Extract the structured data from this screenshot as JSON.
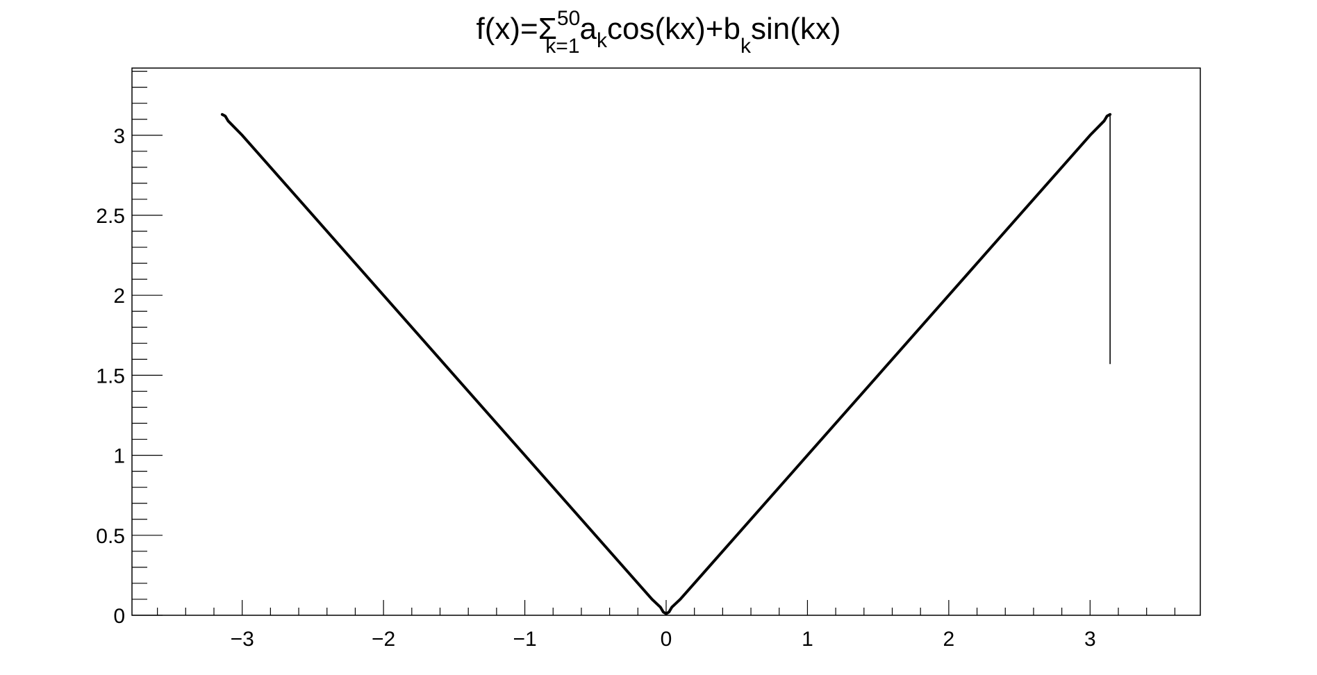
{
  "chart_data": {
    "type": "line",
    "title": {
      "lhs": "f(x)=",
      "sum_symbol": "Σ",
      "sum_upper": "50",
      "sum_lower": "k=1",
      "a": "a",
      "a_sub": "k",
      "cos_term": "cos(kx)+b",
      "b_sub": "k",
      "sin_term": "sin(kx)"
    },
    "xlabel": "",
    "ylabel": "",
    "xlim": [
      -3.78,
      3.78
    ],
    "ylim": [
      0,
      3.42
    ],
    "x_ticks": [
      {
        "value": -3,
        "label": "−3"
      },
      {
        "value": -2,
        "label": "−2"
      },
      {
        "value": -1,
        "label": "−1"
      },
      {
        "value": 0,
        "label": "0"
      },
      {
        "value": 1,
        "label": "1"
      },
      {
        "value": 2,
        "label": "2"
      },
      {
        "value": 3,
        "label": "3"
      }
    ],
    "y_ticks": [
      {
        "value": 0,
        "label": "0"
      },
      {
        "value": 0.5,
        "label": "0.5"
      },
      {
        "value": 1,
        "label": "1"
      },
      {
        "value": 1.5,
        "label": "1.5"
      },
      {
        "value": 2,
        "label": "2"
      },
      {
        "value": 2.5,
        "label": "2.5"
      },
      {
        "value": 3,
        "label": "3"
      }
    ],
    "grid": false,
    "series": [
      {
        "color": "#000000",
        "x": [
          -3.1416,
          -3.12,
          -3.1,
          -3.0,
          -2.5,
          -2.0,
          -1.5,
          -1.0,
          -0.5,
          -0.1,
          -0.04,
          -0.02,
          0.0,
          0.02,
          0.04,
          0.1,
          0.5,
          1.0,
          1.5,
          2.0,
          2.5,
          3.0,
          3.1,
          3.12,
          3.1416,
          3.1416
        ],
        "y": [
          3.13,
          3.12,
          3.09,
          3.0,
          2.5,
          2.0,
          1.5,
          1.0,
          0.5,
          0.1,
          0.05,
          0.02,
          0.01,
          0.02,
          0.05,
          0.1,
          0.5,
          1.0,
          1.5,
          2.0,
          2.5,
          3.0,
          3.09,
          3.12,
          3.13,
          1.57
        ]
      }
    ]
  }
}
